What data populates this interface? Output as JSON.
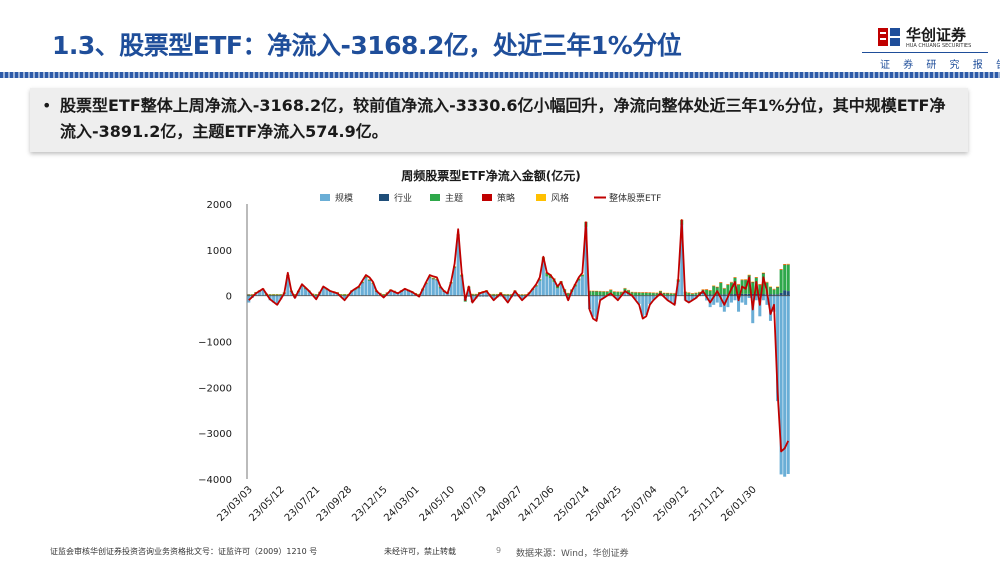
{
  "page": {
    "title": "1.3、股票型ETF：净流入-3168.2亿，处近三年1%分位",
    "logo": {
      "name": "华创证券",
      "en": "HUA CHUANG SECURITIES"
    },
    "header_subtitle": "证 券 研 究 报 告",
    "bullet": "股票型ETF整体上周净流入-3168.2亿，较前值净流入-3330.6亿小幅回升，净流向整体处近三年1%分位，其中规模ETF净流入-3891.2亿，主题ETF净流入574.9亿。",
    "footer": {
      "license": "证监会审核华创证券投资咨询业务资格批文号：证监许可（2009）1210 号",
      "copyright": "未经许可，禁止转载",
      "page_number": "9",
      "source": "数据来源：Wind，华创证券"
    },
    "colors": {
      "title": "#1f4e9a",
      "accent": "#c00000"
    }
  },
  "chart_data": {
    "type": "bar",
    "title": "周频股票型ETF净流入金额(亿元)",
    "ylim": [
      -4000,
      2000
    ],
    "yticks": [
      2000,
      1000,
      0,
      -1000,
      -2000,
      -3000,
      -4000
    ],
    "ytick_labels": [
      "2000",
      "1000",
      "0",
      "−1000",
      "−2000",
      "−3000",
      "−4000"
    ],
    "x_tick_labels": [
      "23/03/03",
      "23/05/12",
      "23/07/21",
      "23/09/28",
      "23/12/15",
      "24/03/01",
      "24/05/10",
      "24/07/19",
      "24/09/27",
      "24/12/06",
      "25/02/14",
      "25/04/25",
      "25/07/04",
      "25/09/12",
      "25/11/21",
      "26/01/30"
    ],
    "legend": [
      "规模",
      "行业",
      "主题",
      "策略",
      "风格",
      "整体股票ETF"
    ],
    "legend_position": "top",
    "series_colors": [
      "#6aaed6",
      "#1f4e79",
      "#2ea84a",
      "#c00000",
      "#ffc000",
      "#c00000"
    ],
    "n_weeks": 153,
    "total_keypoints": [
      [
        0,
        -100
      ],
      [
        2,
        50
      ],
      [
        4,
        150
      ],
      [
        6,
        -80
      ],
      [
        8,
        -200
      ],
      [
        10,
        50
      ],
      [
        11,
        500
      ],
      [
        12,
        100
      ],
      [
        13,
        -50
      ],
      [
        15,
        250
      ],
      [
        17,
        100
      ],
      [
        19,
        -80
      ],
      [
        21,
        200
      ],
      [
        23,
        100
      ],
      [
        25,
        50
      ],
      [
        27,
        -100
      ],
      [
        29,
        100
      ],
      [
        31,
        200
      ],
      [
        33,
        450
      ],
      [
        34,
        400
      ],
      [
        35,
        300
      ],
      [
        36,
        100
      ],
      [
        38,
        -40
      ],
      [
        40,
        120
      ],
      [
        42,
        50
      ],
      [
        44,
        150
      ],
      [
        46,
        80
      ],
      [
        48,
        -20
      ],
      [
        50,
        300
      ],
      [
        51,
        450
      ],
      [
        52,
        420
      ],
      [
        53,
        400
      ],
      [
        54,
        200
      ],
      [
        55,
        100
      ],
      [
        56,
        50
      ],
      [
        57,
        300
      ],
      [
        58,
        700
      ],
      [
        59,
        1450
      ],
      [
        60,
        500
      ],
      [
        61,
        -100
      ],
      [
        62,
        200
      ],
      [
        63,
        -150
      ],
      [
        65,
        50
      ],
      [
        67,
        100
      ],
      [
        69,
        -100
      ],
      [
        71,
        50
      ],
      [
        73,
        -150
      ],
      [
        75,
        100
      ],
      [
        77,
        -100
      ],
      [
        79,
        50
      ],
      [
        81,
        250
      ],
      [
        82,
        400
      ],
      [
        83,
        850
      ],
      [
        84,
        500
      ],
      [
        85,
        450
      ],
      [
        86,
        350
      ],
      [
        87,
        200
      ],
      [
        88,
        300
      ],
      [
        89,
        100
      ],
      [
        90,
        -100
      ],
      [
        91,
        100
      ],
      [
        92,
        250
      ],
      [
        93,
        400
      ],
      [
        94,
        500
      ],
      [
        95,
        1600
      ],
      [
        96,
        -300
      ],
      [
        97,
        -500
      ],
      [
        98,
        -550
      ],
      [
        99,
        -100
      ],
      [
        100,
        -50
      ],
      [
        102,
        50
      ],
      [
        104,
        -100
      ],
      [
        106,
        100
      ],
      [
        108,
        0
      ],
      [
        110,
        -200
      ],
      [
        111,
        -500
      ],
      [
        112,
        -450
      ],
      [
        113,
        -200
      ],
      [
        114,
        -100
      ],
      [
        116,
        50
      ],
      [
        118,
        -100
      ],
      [
        120,
        -200
      ],
      [
        121,
        350
      ],
      [
        122,
        1650
      ],
      [
        123,
        -100
      ],
      [
        124,
        -150
      ],
      [
        126,
        -50
      ],
      [
        128,
        100
      ],
      [
        130,
        -150
      ],
      [
        132,
        100
      ],
      [
        134,
        -200
      ],
      [
        136,
        150
      ],
      [
        137,
        300
      ],
      [
        138,
        -100
      ],
      [
        139,
        200
      ],
      [
        140,
        150
      ],
      [
        141,
        400
      ],
      [
        142,
        -300
      ],
      [
        143,
        300
      ],
      [
        144,
        -200
      ],
      [
        145,
        400
      ],
      [
        146,
        100
      ],
      [
        147,
        -400
      ],
      [
        148,
        -200
      ],
      [
        149,
        -2100
      ],
      [
        150,
        -3400
      ],
      [
        151,
        -3330.6
      ],
      [
        152,
        -3168.2
      ]
    ],
    "scale_keypoints": [
      [
        0,
        -150
      ],
      [
        2,
        50
      ],
      [
        4,
        120
      ],
      [
        6,
        -100
      ],
      [
        8,
        -200
      ],
      [
        10,
        40
      ],
      [
        11,
        420
      ],
      [
        12,
        80
      ],
      [
        13,
        -50
      ],
      [
        15,
        200
      ],
      [
        17,
        80
      ],
      [
        19,
        -60
      ],
      [
        21,
        160
      ],
      [
        23,
        80
      ],
      [
        25,
        40
      ],
      [
        27,
        -80
      ],
      [
        29,
        80
      ],
      [
        31,
        160
      ],
      [
        33,
        380
      ],
      [
        34,
        320
      ],
      [
        35,
        250
      ],
      [
        36,
        80
      ],
      [
        38,
        -30
      ],
      [
        40,
        100
      ],
      [
        42,
        40
      ],
      [
        44,
        120
      ],
      [
        46,
        60
      ],
      [
        48,
        -20
      ],
      [
        50,
        250
      ],
      [
        51,
        380
      ],
      [
        52,
        350
      ],
      [
        53,
        330
      ],
      [
        54,
        160
      ],
      [
        55,
        80
      ],
      [
        56,
        40
      ],
      [
        57,
        260
      ],
      [
        58,
        600
      ],
      [
        59,
        1300
      ],
      [
        60,
        420
      ],
      [
        61,
        -80
      ],
      [
        62,
        160
      ],
      [
        63,
        -120
      ],
      [
        65,
        40
      ],
      [
        67,
        80
      ],
      [
        69,
        -80
      ],
      [
        71,
        40
      ],
      [
        73,
        -120
      ],
      [
        75,
        80
      ],
      [
        77,
        -80
      ],
      [
        79,
        40
      ],
      [
        81,
        200
      ],
      [
        82,
        330
      ],
      [
        83,
        750
      ],
      [
        84,
        420
      ],
      [
        85,
        380
      ],
      [
        86,
        300
      ],
      [
        87,
        160
      ],
      [
        88,
        250
      ],
      [
        89,
        80
      ],
      [
        90,
        -80
      ],
      [
        91,
        80
      ],
      [
        92,
        200
      ],
      [
        93,
        330
      ],
      [
        94,
        420
      ],
      [
        95,
        1500
      ],
      [
        96,
        -280
      ],
      [
        97,
        -450
      ],
      [
        98,
        -500
      ],
      [
        99,
        -80
      ],
      [
        100,
        -40
      ],
      [
        102,
        40
      ],
      [
        104,
        -80
      ],
      [
        106,
        80
      ],
      [
        108,
        0
      ],
      [
        110,
        -180
      ],
      [
        111,
        -460
      ],
      [
        112,
        -420
      ],
      [
        113,
        -180
      ],
      [
        114,
        -90
      ],
      [
        116,
        40
      ],
      [
        118,
        -90
      ],
      [
        120,
        -180
      ],
      [
        121,
        300
      ],
      [
        122,
        1550
      ],
      [
        123,
        -100
      ],
      [
        124,
        -140
      ],
      [
        126,
        -60
      ],
      [
        128,
        40
      ],
      [
        130,
        -250
      ],
      [
        132,
        -150
      ],
      [
        134,
        -350
      ],
      [
        136,
        -150
      ],
      [
        137,
        -100
      ],
      [
        138,
        -350
      ],
      [
        139,
        -150
      ],
      [
        140,
        -200
      ],
      [
        141,
        -50
      ],
      [
        142,
        -600
      ],
      [
        143,
        -100
      ],
      [
        144,
        -450
      ],
      [
        145,
        -100
      ],
      [
        146,
        -200
      ],
      [
        147,
        -550
      ],
      [
        148,
        -350
      ],
      [
        149,
        -2300
      ],
      [
        150,
        -3900
      ],
      [
        151,
        -3950
      ],
      [
        152,
        -3891.2
      ]
    ],
    "theme_keypoints": [
      [
        0,
        20
      ],
      [
        60,
        20
      ],
      [
        61,
        -30
      ],
      [
        62,
        30
      ],
      [
        82,
        20
      ],
      [
        83,
        80
      ],
      [
        94,
        30
      ],
      [
        95,
        100
      ],
      [
        121,
        30
      ],
      [
        122,
        80
      ],
      [
        125,
        20
      ],
      [
        128,
        60
      ],
      [
        129,
        100
      ],
      [
        130,
        80
      ],
      [
        131,
        180
      ],
      [
        132,
        150
      ],
      [
        133,
        250
      ],
      [
        134,
        120
      ],
      [
        135,
        200
      ],
      [
        136,
        250
      ],
      [
        137,
        350
      ],
      [
        138,
        200
      ],
      [
        139,
        300
      ],
      [
        140,
        300
      ],
      [
        141,
        400
      ],
      [
        142,
        250
      ],
      [
        143,
        350
      ],
      [
        144,
        200
      ],
      [
        145,
        450
      ],
      [
        146,
        250
      ],
      [
        147,
        150
      ],
      [
        148,
        100
      ],
      [
        149,
        150
      ],
      [
        150,
        500
      ],
      [
        151,
        550
      ],
      [
        152,
        574.9
      ]
    ],
    "industry_keypoints": [
      [
        0,
        5
      ],
      [
        60,
        10
      ],
      [
        61,
        -20
      ],
      [
        120,
        10
      ],
      [
        140,
        40
      ],
      [
        149,
        30
      ],
      [
        150,
        60
      ],
      [
        151,
        120
      ],
      [
        152,
        100
      ]
    ],
    "strategy_keypoints": [
      [
        0,
        5
      ],
      [
        152,
        10
      ]
    ],
    "style_keypoints": [
      [
        0,
        0
      ],
      [
        152,
        10
      ]
    ]
  }
}
